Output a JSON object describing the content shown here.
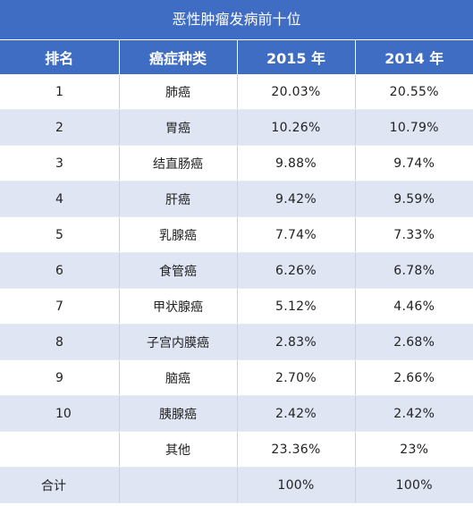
{
  "title": "恶性肿瘤发病前十位",
  "headers": [
    "排名",
    "癌症种类",
    "2015 年",
    "2014 年"
  ],
  "rows": [
    {
      "rank": "1",
      "type": "肺癌",
      "y2015": "20.03%",
      "y2014": "20.55%"
    },
    {
      "rank": "2",
      "type": "胃癌",
      "y2015": "10.26%",
      "y2014": "10.79%"
    },
    {
      "rank": "3",
      "type": "结直肠癌",
      "y2015": "9.88%",
      "y2014": "9.74%"
    },
    {
      "rank": "4",
      "type": "肝癌",
      "y2015": "9.42%",
      "y2014": "9.59%"
    },
    {
      "rank": "5",
      "type": "乳腺癌",
      "y2015": "7.74%",
      "y2014": "7.33%"
    },
    {
      "rank": "6",
      "type": "食管癌",
      "y2015": "6.26%",
      "y2014": "6.78%"
    },
    {
      "rank": "7",
      "type": "甲状腺癌",
      "y2015": "5.12%",
      "y2014": "4.46%"
    },
    {
      "rank": "8",
      "type": "子宫内膜癌",
      "y2015": "2.83%",
      "y2014": "2.68%"
    },
    {
      "rank": "9",
      "type": "脑癌",
      "y2015": "2.70%",
      "y2014": "2.66%"
    },
    {
      "rank": "10",
      "type": "胰腺癌",
      "y2015": "2.42%",
      "y2014": "2.42%"
    },
    {
      "rank": "",
      "type": "其他",
      "y2015": "23.36%",
      "y2014": "23%"
    }
  ],
  "total": {
    "label": "合计",
    "type": "",
    "y2015": "100%",
    "y2014": "100%"
  },
  "colors": {
    "header_bg": "#3f6dc3",
    "alt_row_bg": "#dfe5f3"
  }
}
